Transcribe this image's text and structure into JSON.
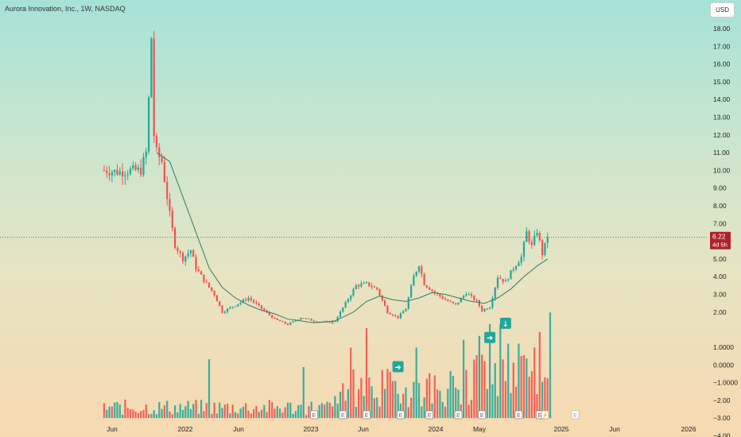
{
  "header": {
    "title": "Aurora Innovation, Inc., 1W, NASDAQ",
    "currency": "USD"
  },
  "price_badge": {
    "value": "6.22",
    "countdown": "4d 5h"
  },
  "event_marker_letters": {
    "earnings": "E",
    "split": "⚡"
  },
  "colors": {
    "up": "#26a69a",
    "down": "#ef5350",
    "ma": "#2e7d6b",
    "badge": "#b1202c"
  },
  "chart_data": {
    "type": "candlestick",
    "title": "Aurora Innovation, Inc., 1W, NASDAQ",
    "x_ticks": [
      "Jun",
      "2022",
      "Jun",
      "2023",
      "Jun",
      "2024",
      "May",
      "2025",
      "Jun",
      "2026"
    ],
    "y_ticks_price": [
      "18.00",
      "17.00",
      "16.00",
      "15.00",
      "14.00",
      "13.00",
      "12.00",
      "11.00",
      "10.00",
      "9.00",
      "8.00",
      "7.00",
      "6.00",
      "5.00",
      "4.00",
      "3.00",
      "2.00"
    ],
    "y_ticks_osc": [
      "1.0000",
      "0.0000",
      "−1.0000",
      "−2.00",
      "−3.00",
      "−4.00"
    ],
    "last_price": 6.22,
    "price_path": [
      [
        0,
        10
      ],
      [
        6,
        9.9
      ],
      [
        10,
        10
      ],
      [
        14,
        10
      ],
      [
        16,
        11
      ],
      [
        17,
        14
      ],
      [
        18,
        17.5
      ],
      [
        19,
        12
      ],
      [
        20,
        11
      ],
      [
        22,
        10.5
      ],
      [
        25,
        7.5
      ],
      [
        27,
        5.8
      ],
      [
        30,
        5
      ],
      [
        33,
        5.5
      ],
      [
        35,
        4.5
      ],
      [
        38,
        3.8
      ],
      [
        42,
        3
      ],
      [
        45,
        2
      ],
      [
        50,
        2.4
      ],
      [
        55,
        2.8
      ],
      [
        60,
        2.2
      ],
      [
        65,
        1.6
      ],
      [
        70,
        1.3
      ],
      [
        75,
        1.7
      ],
      [
        80,
        1.5
      ],
      [
        85,
        1.4
      ],
      [
        88,
        1.5
      ],
      [
        92,
        2.5
      ],
      [
        96,
        3.5
      ],
      [
        100,
        3.6
      ],
      [
        104,
        3.3
      ],
      [
        108,
        2
      ],
      [
        112,
        1.7
      ],
      [
        115,
        2.2
      ],
      [
        118,
        4
      ],
      [
        120,
        4.7
      ],
      [
        122,
        3.6
      ],
      [
        125,
        3.2
      ],
      [
        130,
        2.7
      ],
      [
        134,
        2.4
      ],
      [
        138,
        3.1
      ],
      [
        142,
        2.6
      ],
      [
        144,
        2.1
      ],
      [
        147,
        2.3
      ],
      [
        150,
        4
      ],
      [
        153,
        3.7
      ],
      [
        156,
        4.5
      ],
      [
        159,
        5.1
      ],
      [
        161,
        6.5
      ],
      [
        163,
        5.7
      ],
      [
        165,
        6.6
      ],
      [
        167,
        5.3
      ],
      [
        169,
        6.22
      ]
    ],
    "ma_path": [
      [
        20,
        11
      ],
      [
        25,
        10.5
      ],
      [
        30,
        8.5
      ],
      [
        35,
        6.5
      ],
      [
        40,
        4.5
      ],
      [
        45,
        3.4
      ],
      [
        50,
        2.8
      ],
      [
        55,
        2.4
      ],
      [
        60,
        2.1
      ],
      [
        65,
        1.9
      ],
      [
        70,
        1.6
      ],
      [
        75,
        1.5
      ],
      [
        80,
        1.4
      ],
      [
        88,
        1.5
      ],
      [
        95,
        2
      ],
      [
        100,
        2.6
      ],
      [
        105,
        2.9
      ],
      [
        110,
        2.7
      ],
      [
        115,
        2.6
      ],
      [
        120,
        2.8
      ],
      [
        125,
        3.1
      ],
      [
        130,
        3
      ],
      [
        135,
        2.8
      ],
      [
        140,
        2.6
      ],
      [
        145,
        2.5
      ],
      [
        150,
        2.8
      ],
      [
        155,
        3.3
      ],
      [
        160,
        4
      ],
      [
        165,
        4.6
      ],
      [
        169,
        5
      ]
    ],
    "volume_spikes": [
      [
        40,
        0.6
      ],
      [
        76,
        0.4
      ],
      [
        94,
        0.9
      ],
      [
        100,
        1.4
      ],
      [
        119,
        0.9
      ],
      [
        137,
        1.1
      ],
      [
        143,
        1.2
      ],
      [
        147,
        1.5
      ],
      [
        151,
        1.5
      ],
      [
        154,
        1.0
      ],
      [
        158,
        1.0
      ],
      [
        164,
        0.9
      ],
      [
        166,
        1.3
      ],
      [
        170,
        1.8
      ]
    ],
    "events_x": [
      80,
      91,
      100,
      113,
      124,
      135,
      144,
      158,
      166,
      168
    ],
    "event_markers": [
      "E",
      "E",
      "E",
      "E",
      "E",
      "E",
      "E",
      "E",
      "E",
      "⚡"
    ],
    "signals": [
      {
        "x": 112,
        "y_osc": -1.1,
        "dir": "right"
      },
      {
        "x": 147,
        "y_osc": 0.55,
        "dir": "right"
      },
      {
        "x": 153,
        "y_osc": 1.35,
        "dir": "down"
      }
    ]
  }
}
